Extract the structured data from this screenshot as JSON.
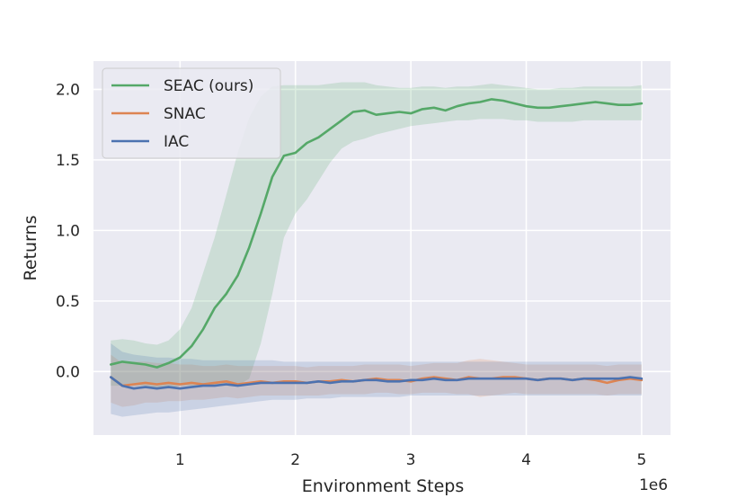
{
  "chart_data": {
    "type": "line",
    "title": "",
    "xlabel": "Environment Steps",
    "ylabel": "Returns",
    "x_offset_label": "1e6",
    "xlim": [
      0.25,
      5.25
    ],
    "ylim": [
      -0.45,
      2.2
    ],
    "xticks": [
      1,
      2,
      3,
      4,
      5
    ],
    "yticks": [
      0.0,
      0.5,
      1.0,
      1.5,
      2.0
    ],
    "xtick_labels": [
      "1",
      "2",
      "3",
      "4",
      "5"
    ],
    "ytick_labels": [
      "0.0",
      "0.5",
      "1.0",
      "1.5",
      "2.0"
    ],
    "grid": true,
    "legend_position": "top-left",
    "background": "#eaeaf2",
    "series": [
      {
        "name": "SEAC (ours)",
        "color": "#55a868",
        "x": [
          0.4,
          0.5,
          0.6,
          0.7,
          0.8,
          0.9,
          1.0,
          1.1,
          1.2,
          1.3,
          1.4,
          1.5,
          1.6,
          1.7,
          1.8,
          1.9,
          2.0,
          2.1,
          2.2,
          2.3,
          2.4,
          2.5,
          2.6,
          2.7,
          2.8,
          2.9,
          3.0,
          3.1,
          3.2,
          3.3,
          3.4,
          3.5,
          3.6,
          3.7,
          3.8,
          3.9,
          4.0,
          4.1,
          4.2,
          4.3,
          4.4,
          4.5,
          4.6,
          4.7,
          4.8,
          4.9,
          5.0
        ],
        "y": [
          0.05,
          0.07,
          0.06,
          0.05,
          0.03,
          0.06,
          0.1,
          0.18,
          0.3,
          0.45,
          0.55,
          0.68,
          0.88,
          1.12,
          1.38,
          1.53,
          1.55,
          1.62,
          1.66,
          1.72,
          1.78,
          1.84,
          1.85,
          1.82,
          1.83,
          1.84,
          1.83,
          1.86,
          1.87,
          1.85,
          1.88,
          1.9,
          1.91,
          1.93,
          1.92,
          1.9,
          1.88,
          1.87,
          1.87,
          1.88,
          1.89,
          1.9,
          1.91,
          1.9,
          1.89,
          1.89,
          1.9
        ],
        "lower": [
          -0.1,
          -0.1,
          -0.1,
          -0.1,
          -0.12,
          -0.12,
          -0.1,
          -0.1,
          -0.1,
          -0.1,
          -0.1,
          -0.1,
          -0.05,
          0.2,
          0.55,
          0.95,
          1.12,
          1.22,
          1.35,
          1.48,
          1.58,
          1.63,
          1.65,
          1.68,
          1.7,
          1.72,
          1.74,
          1.75,
          1.76,
          1.77,
          1.78,
          1.78,
          1.79,
          1.79,
          1.79,
          1.78,
          1.78,
          1.77,
          1.77,
          1.77,
          1.77,
          1.78,
          1.78,
          1.78,
          1.78,
          1.78,
          1.78
        ],
        "upper": [
          0.22,
          0.23,
          0.22,
          0.2,
          0.19,
          0.22,
          0.3,
          0.45,
          0.7,
          0.95,
          1.25,
          1.55,
          1.8,
          1.95,
          2.02,
          2.03,
          2.03,
          2.03,
          2.03,
          2.04,
          2.05,
          2.05,
          2.05,
          2.03,
          2.02,
          2.01,
          2.01,
          2.02,
          2.02,
          2.01,
          2.02,
          2.02,
          2.03,
          2.04,
          2.03,
          2.02,
          2.01,
          2.0,
          2.0,
          2.01,
          2.01,
          2.02,
          2.02,
          2.02,
          2.02,
          2.02,
          2.03
        ]
      },
      {
        "name": "SNAC",
        "color": "#dd8452",
        "x": [
          0.4,
          0.5,
          0.6,
          0.7,
          0.8,
          0.9,
          1.0,
          1.1,
          1.2,
          1.3,
          1.4,
          1.5,
          1.6,
          1.7,
          1.8,
          1.9,
          2.0,
          2.1,
          2.2,
          2.3,
          2.4,
          2.5,
          2.6,
          2.7,
          2.8,
          2.9,
          3.0,
          3.1,
          3.2,
          3.3,
          3.4,
          3.5,
          3.6,
          3.7,
          3.8,
          3.9,
          4.0,
          4.1,
          4.2,
          4.3,
          4.4,
          4.5,
          4.6,
          4.7,
          4.8,
          4.9,
          5.0
        ],
        "y": [
          -0.04,
          -0.1,
          -0.09,
          -0.08,
          -0.09,
          -0.08,
          -0.09,
          -0.08,
          -0.09,
          -0.08,
          -0.07,
          -0.09,
          -0.08,
          -0.07,
          -0.08,
          -0.07,
          -0.07,
          -0.08,
          -0.07,
          -0.07,
          -0.06,
          -0.07,
          -0.06,
          -0.05,
          -0.06,
          -0.06,
          -0.07,
          -0.05,
          -0.04,
          -0.05,
          -0.06,
          -0.04,
          -0.05,
          -0.05,
          -0.04,
          -0.04,
          -0.05,
          -0.06,
          -0.05,
          -0.05,
          -0.06,
          -0.05,
          -0.06,
          -0.08,
          -0.06,
          -0.05,
          -0.06
        ],
        "lower": [
          -0.22,
          -0.25,
          -0.24,
          -0.22,
          -0.22,
          -0.21,
          -0.21,
          -0.2,
          -0.2,
          -0.19,
          -0.18,
          -0.19,
          -0.18,
          -0.17,
          -0.17,
          -0.17,
          -0.17,
          -0.17,
          -0.17,
          -0.16,
          -0.16,
          -0.16,
          -0.16,
          -0.15,
          -0.15,
          -0.16,
          -0.16,
          -0.15,
          -0.15,
          -0.15,
          -0.16,
          -0.16,
          -0.18,
          -0.17,
          -0.16,
          -0.15,
          -0.16,
          -0.16,
          -0.16,
          -0.16,
          -0.16,
          -0.16,
          -0.16,
          -0.17,
          -0.16,
          -0.16,
          -0.16
        ],
        "upper": [
          0.12,
          0.06,
          0.07,
          0.07,
          0.06,
          0.06,
          0.05,
          0.05,
          0.04,
          0.04,
          0.05,
          0.04,
          0.04,
          0.04,
          0.04,
          0.04,
          0.04,
          0.03,
          0.04,
          0.04,
          0.04,
          0.04,
          0.05,
          0.05,
          0.05,
          0.05,
          0.04,
          0.05,
          0.06,
          0.06,
          0.06,
          0.08,
          0.09,
          0.08,
          0.07,
          0.06,
          0.05,
          0.05,
          0.05,
          0.05,
          0.05,
          0.05,
          0.05,
          0.04,
          0.05,
          0.05,
          0.05
        ]
      },
      {
        "name": "IAC",
        "color": "#4c72b0",
        "x": [
          0.4,
          0.5,
          0.6,
          0.7,
          0.8,
          0.9,
          1.0,
          1.1,
          1.2,
          1.3,
          1.4,
          1.5,
          1.6,
          1.7,
          1.8,
          1.9,
          2.0,
          2.1,
          2.2,
          2.3,
          2.4,
          2.5,
          2.6,
          2.7,
          2.8,
          2.9,
          3.0,
          3.1,
          3.2,
          3.3,
          3.4,
          3.5,
          3.6,
          3.7,
          3.8,
          3.9,
          4.0,
          4.1,
          4.2,
          4.3,
          4.4,
          4.5,
          4.6,
          4.7,
          4.8,
          4.9,
          5.0
        ],
        "y": [
          -0.04,
          -0.1,
          -0.12,
          -0.11,
          -0.12,
          -0.11,
          -0.12,
          -0.11,
          -0.1,
          -0.1,
          -0.09,
          -0.1,
          -0.09,
          -0.08,
          -0.08,
          -0.08,
          -0.08,
          -0.08,
          -0.07,
          -0.08,
          -0.07,
          -0.07,
          -0.06,
          -0.06,
          -0.07,
          -0.07,
          -0.06,
          -0.06,
          -0.05,
          -0.06,
          -0.06,
          -0.05,
          -0.05,
          -0.05,
          -0.05,
          -0.05,
          -0.05,
          -0.06,
          -0.05,
          -0.05,
          -0.06,
          -0.05,
          -0.05,
          -0.05,
          -0.05,
          -0.04,
          -0.05
        ],
        "lower": [
          -0.3,
          -0.32,
          -0.31,
          -0.3,
          -0.29,
          -0.29,
          -0.28,
          -0.27,
          -0.26,
          -0.25,
          -0.24,
          -0.23,
          -0.22,
          -0.21,
          -0.2,
          -0.2,
          -0.2,
          -0.19,
          -0.19,
          -0.19,
          -0.18,
          -0.18,
          -0.18,
          -0.18,
          -0.18,
          -0.18,
          -0.17,
          -0.17,
          -0.17,
          -0.17,
          -0.17,
          -0.17,
          -0.17,
          -0.17,
          -0.17,
          -0.17,
          -0.17,
          -0.17,
          -0.17,
          -0.17,
          -0.17,
          -0.17,
          -0.17,
          -0.17,
          -0.17,
          -0.17,
          -0.17
        ],
        "upper": [
          0.2,
          0.14,
          0.12,
          0.11,
          0.1,
          0.1,
          0.09,
          0.09,
          0.08,
          0.08,
          0.08,
          0.08,
          0.08,
          0.08,
          0.08,
          0.07,
          0.07,
          0.07,
          0.07,
          0.07,
          0.07,
          0.07,
          0.07,
          0.07,
          0.07,
          0.07,
          0.07,
          0.07,
          0.07,
          0.07,
          0.07,
          0.07,
          0.07,
          0.07,
          0.07,
          0.07,
          0.07,
          0.07,
          0.07,
          0.07,
          0.07,
          0.07,
          0.07,
          0.07,
          0.07,
          0.07,
          0.07
        ]
      }
    ]
  }
}
